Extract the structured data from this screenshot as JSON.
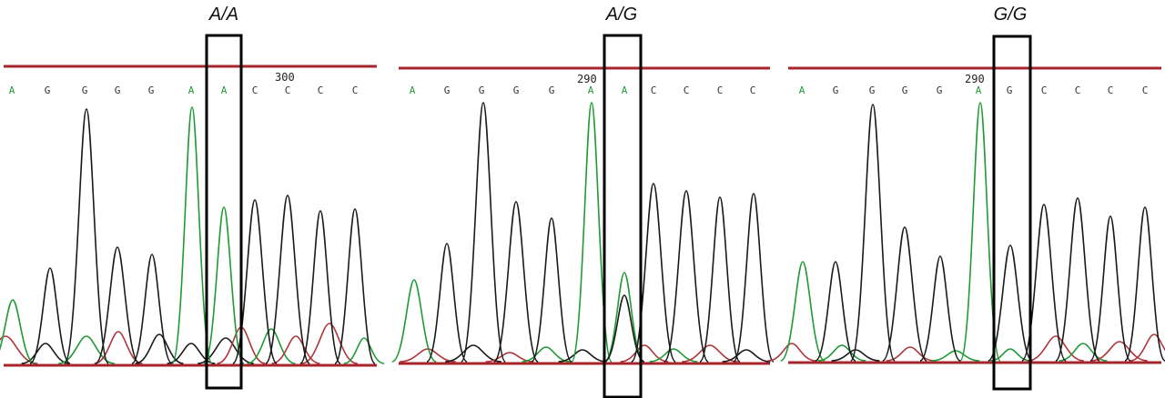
{
  "colors": {
    "ruler": "#a8242c",
    "base_A": "#1f9a35",
    "base_G": "#333333",
    "base_C": "#333333",
    "trace_A": "#1f9a35",
    "trace_G": "#1a1a1a",
    "trace_C": "#1a1a1a",
    "trace_T": "#b0353a",
    "box": "#000000"
  },
  "panels": [
    {
      "genotype": "A/A",
      "position_label": "300",
      "bases": [
        "A",
        "G",
        "G",
        "G",
        "G",
        "A",
        "A",
        "C",
        "C",
        "C",
        "C"
      ],
      "highlighted_index": 6
    },
    {
      "genotype": "A/G",
      "position_label": "290",
      "bases": [
        "A",
        "G",
        "G",
        "G",
        "G",
        "A",
        "A",
        "C",
        "C",
        "C",
        "C"
      ],
      "highlighted_index": 6
    },
    {
      "genotype": "G/G",
      "position_label": "290",
      "bases": [
        "A",
        "G",
        "G",
        "G",
        "G",
        "A",
        "G",
        "C",
        "C",
        "C",
        "C"
      ],
      "highlighted_index": 6
    }
  ]
}
